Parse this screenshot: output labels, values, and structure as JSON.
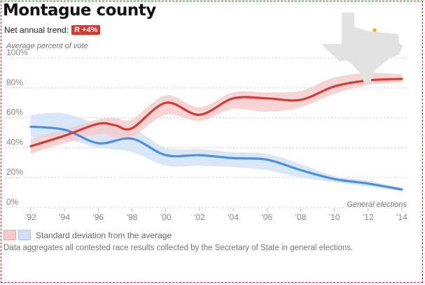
{
  "header": {
    "title": "Montague county",
    "trend_label": "Net annual trend:",
    "trend_value": "R +4%",
    "trend_color": "#d63a32"
  },
  "legend": {
    "text": "Standard deviation from the average"
  },
  "footnote": "Data aggregates all contested race results collected by the Secretary of State in general elections.",
  "map": {
    "icon": "texas-map-icon",
    "marker_color": "#f5a623"
  },
  "chart_data": {
    "type": "line",
    "ylabel": "Average percent of vote",
    "xlabel": "General elections",
    "ylim": [
      0,
      100
    ],
    "yticks": [
      "0%",
      "20%",
      "40%",
      "60%",
      "80%",
      "100%"
    ],
    "ytick_values": [
      0,
      20,
      40,
      60,
      80,
      100
    ],
    "xticks": [
      "'92",
      "'94",
      "'96",
      "'98",
      "'00",
      "'02",
      "'04",
      "'06",
      "'08",
      "'10",
      "'12",
      "'14"
    ],
    "xtick_values": [
      1992,
      1994,
      1996,
      1998,
      2000,
      2002,
      2004,
      2006,
      2008,
      2010,
      2012,
      2014
    ],
    "xlim": [
      1992,
      2014
    ],
    "grid": true,
    "series": [
      {
        "color": "#d63a32",
        "band_color": "#f6c9c9",
        "x": [
          1992,
          1994,
          1996,
          1997,
          1998,
          2000,
          2002,
          2004,
          2006,
          2008,
          2010,
          2012,
          2014
        ],
        "values": [
          41,
          48,
          56,
          55,
          53,
          70,
          62,
          73,
          73,
          72,
          81,
          85,
          86
        ],
        "band_low": [
          36,
          43,
          49,
          47,
          47,
          62,
          58,
          66,
          64,
          67,
          76,
          82,
          84
        ],
        "band_high": [
          46,
          52,
          59,
          60,
          59,
          75,
          67,
          77,
          77,
          78,
          87,
          90,
          89
        ]
      },
      {
        "color": "#4a90e2",
        "band_color": "#cfe0f6",
        "x": [
          1992,
          1994,
          1996,
          1998,
          2000,
          2002,
          2004,
          2006,
          2008,
          2010,
          2012,
          2014
        ],
        "values": [
          54,
          52,
          43,
          46,
          35,
          35,
          33,
          32,
          25,
          19,
          16,
          12
        ],
        "band_low": [
          47,
          46,
          40,
          37,
          28,
          28,
          27,
          25,
          20,
          17,
          14,
          11
        ],
        "band_high": [
          62,
          63,
          56,
          53,
          40,
          39,
          37,
          36,
          29,
          21,
          18,
          13
        ]
      }
    ]
  }
}
